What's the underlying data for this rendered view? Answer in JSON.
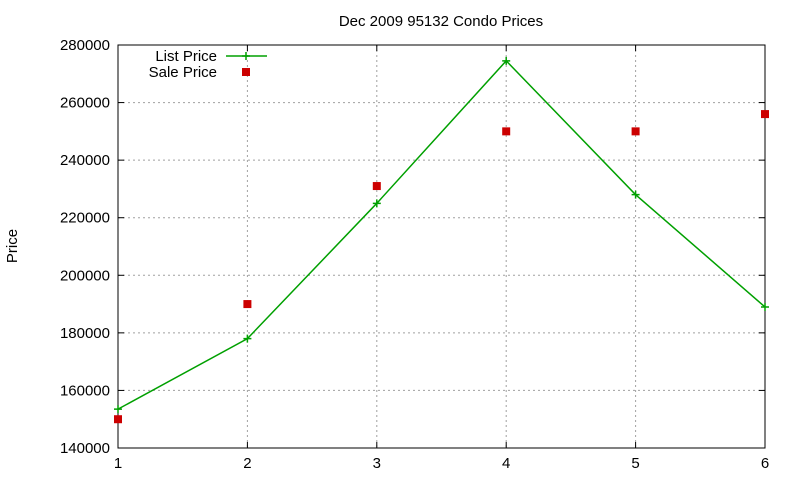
{
  "chart_data": {
    "type": "line",
    "title": "Dec 2009 95132 Condo Prices",
    "xlabel": "",
    "ylabel": "Price",
    "x": [
      1,
      2,
      3,
      4,
      5,
      6
    ],
    "xlim": [
      1,
      6
    ],
    "ylim": [
      140000,
      280000
    ],
    "x_ticks": [
      "1",
      "2",
      "3",
      "4",
      "5",
      "6"
    ],
    "y_ticks": [
      "140000",
      "160000",
      "180000",
      "200000",
      "220000",
      "240000",
      "260000",
      "280000"
    ],
    "grid": true,
    "legend_position": "top-left",
    "series": [
      {
        "name": "List Price",
        "style": "line-with-plus-markers",
        "color": "#00a000",
        "values": [
          153500,
          178000,
          225000,
          274500,
          228000,
          189000
        ]
      },
      {
        "name": "Sale Price",
        "style": "square-markers",
        "color": "#cc0000",
        "values": [
          150000,
          190000,
          231000,
          250000,
          250000,
          256000
        ]
      }
    ]
  }
}
